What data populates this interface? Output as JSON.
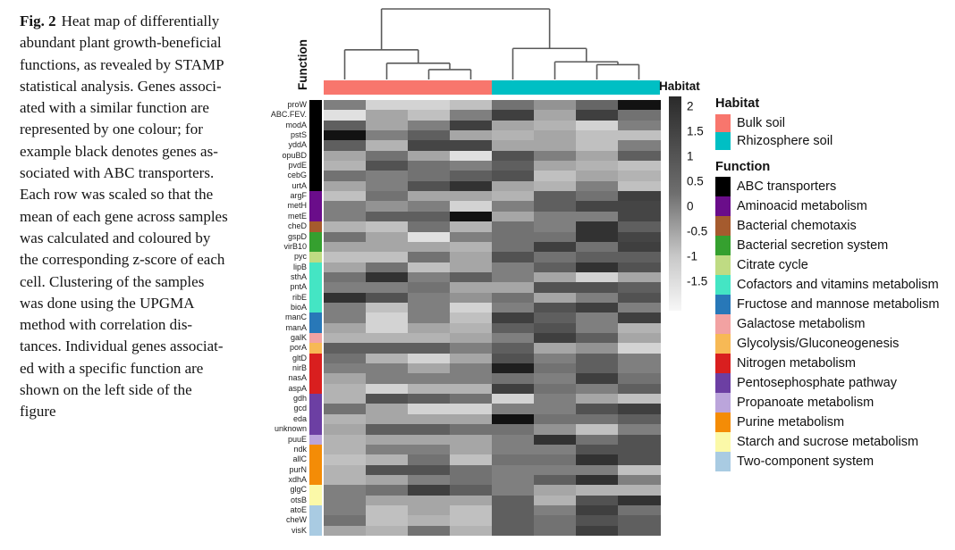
{
  "figure_caption": {
    "label": "Fig. 2",
    "lines": [
      "Heat map of differentially",
      "abundant plant growth-beneficial",
      "functions, as revealed by STAMP",
      "statistical analysis. Genes associ-",
      "ated with a similar function are",
      "represented by one colour; for",
      "example black denotes genes as-",
      "sociated with ABC transporters.",
      "Each row was scaled so that the",
      "mean of each gene across samples",
      "was calculated and coloured by",
      "the corresponding z-score of each",
      "cell. Clustering of the samples",
      "was done using the UPGMA",
      "method with correlation dis-",
      "tances. Individual genes associat-",
      "ed with a specific function are",
      "shown on the left side of the",
      "figure"
    ]
  },
  "chart_data": {
    "type": "heatmap",
    "value_name": "z-score",
    "zlim": [
      -1.5,
      2
    ],
    "axis_labels": {
      "function_axis": "Function",
      "habitat_axis": "Habitat"
    },
    "colorbar_ticks": [
      "2",
      "1.5",
      "1",
      "0.5",
      "0",
      "-0.5",
      "-1",
      "-1.5"
    ],
    "sample_groups": [
      {
        "habitat": "Bulk soil",
        "n_samples": 4
      },
      {
        "habitat": "Rhizosphere soil",
        "n_samples": 4
      }
    ],
    "genes": [
      "proW",
      "ABC.FEV.",
      "modA",
      "pstS",
      "yddA",
      "opuBD",
      "pvdE",
      "cebG",
      "urtA",
      "argF",
      "metH",
      "metE",
      "cheD",
      "gspD",
      "virB10",
      "pyc",
      "lipB",
      "sthA",
      "pntA",
      "ribE",
      "bioA",
      "manC",
      "manA",
      "galK",
      "porA",
      "gltD",
      "nirB",
      "nasA",
      "aspA",
      "gdh",
      "gcd",
      "eda",
      "unknown",
      "puuE",
      "ndk",
      "allC",
      "purN",
      "xdhA",
      "glgC",
      "otsB",
      "atoE",
      "cheW",
      "visK"
    ],
    "gene_function_index": [
      0,
      0,
      0,
      0,
      0,
      0,
      0,
      0,
      0,
      1,
      1,
      1,
      2,
      3,
      3,
      4,
      5,
      5,
      5,
      5,
      5,
      6,
      6,
      7,
      8,
      9,
      9,
      9,
      9,
      10,
      10,
      10,
      10,
      11,
      12,
      12,
      12,
      12,
      13,
      13,
      14,
      14,
      14
    ],
    "z_matrix": [
      [
        0.3,
        -1.0,
        -1.0,
        -0.7,
        0.5,
        0.0,
        0.7,
        2.0
      ],
      [
        -1.2,
        -0.3,
        -0.7,
        0.3,
        1.3,
        -0.3,
        1.3,
        0.5
      ],
      [
        0.8,
        -0.3,
        0.3,
        1.3,
        -0.3,
        -0.5,
        -1.0,
        0.3
      ],
      [
        2.0,
        0.3,
        0.8,
        -0.3,
        -0.5,
        -0.3,
        -0.7,
        -0.7
      ],
      [
        0.8,
        -0.5,
        1.2,
        1.2,
        -0.3,
        -0.3,
        -0.7,
        0.3
      ],
      [
        -0.3,
        0.5,
        -0.3,
        -1.2,
        1.0,
        0.3,
        -0.3,
        0.8
      ],
      [
        -0.5,
        1.0,
        0.5,
        0.3,
        0.8,
        -0.3,
        -0.5,
        -0.7
      ],
      [
        0.5,
        0.3,
        0.5,
        0.8,
        1.0,
        -0.7,
        -0.3,
        -0.5
      ],
      [
        -0.3,
        0.3,
        1.0,
        1.5,
        -0.3,
        -0.5,
        0.3,
        -0.7
      ],
      [
        -0.7,
        0.5,
        -0.3,
        -0.3,
        -0.5,
        0.8,
        0.5,
        1.3
      ],
      [
        0.3,
        0.0,
        0.3,
        -1.0,
        0.3,
        0.8,
        1.2,
        1.2
      ],
      [
        0.3,
        0.8,
        0.8,
        2.0,
        -0.3,
        0.3,
        0.3,
        1.2
      ],
      [
        -0.5,
        -0.7,
        0.5,
        -0.5,
        0.5,
        0.3,
        1.5,
        0.8
      ],
      [
        0.5,
        -0.3,
        -1.2,
        0.3,
        0.5,
        0.5,
        1.5,
        1.2
      ],
      [
        -0.3,
        -0.3,
        -0.3,
        -0.5,
        0.5,
        1.3,
        0.5,
        1.3
      ],
      [
        -0.7,
        -0.7,
        0.5,
        -0.3,
        1.0,
        0.5,
        0.8,
        0.8
      ],
      [
        -0.3,
        0.5,
        -0.7,
        -0.3,
        0.3,
        0.8,
        1.5,
        1.0
      ],
      [
        0.5,
        1.5,
        0.3,
        0.8,
        0.3,
        -0.3,
        -1.0,
        -0.3
      ],
      [
        0.3,
        0.3,
        0.5,
        -0.3,
        -0.3,
        1.0,
        1.0,
        0.8
      ],
      [
        1.5,
        1.0,
        0.3,
        0.0,
        0.5,
        -0.3,
        0.3,
        1.0
      ],
      [
        0.3,
        -0.7,
        0.3,
        -1.0,
        0.3,
        1.0,
        1.3,
        0.3
      ],
      [
        0.3,
        -1.0,
        0.3,
        -0.7,
        1.3,
        0.8,
        0.3,
        1.3
      ],
      [
        -0.3,
        -1.0,
        -0.3,
        -0.5,
        0.8,
        1.0,
        0.3,
        -0.5
      ],
      [
        -0.5,
        -0.5,
        -0.5,
        -0.3,
        0.3,
        1.3,
        0.8,
        -0.3
      ],
      [
        0.8,
        0.8,
        0.8,
        0.3,
        0.8,
        -0.3,
        0.0,
        -1.0
      ],
      [
        0.5,
        -0.5,
        -1.0,
        -0.3,
        1.0,
        0.3,
        0.8,
        0.3
      ],
      [
        0.3,
        0.3,
        -0.3,
        0.3,
        1.8,
        0.5,
        0.8,
        0.3
      ],
      [
        -0.3,
        0.3,
        0.3,
        0.3,
        0.5,
        0.3,
        1.3,
        0.5
      ],
      [
        -0.5,
        -1.0,
        -0.5,
        -0.5,
        1.3,
        0.5,
        0.3,
        0.8
      ],
      [
        -0.5,
        1.0,
        0.8,
        0.5,
        -1.0,
        0.3,
        -0.3,
        -0.7
      ],
      [
        0.5,
        -0.3,
        -1.0,
        -1.0,
        0.3,
        0.3,
        1.0,
        1.3
      ],
      [
        -0.5,
        -0.3,
        -0.3,
        -0.3,
        2.0,
        0.5,
        0.5,
        0.8
      ],
      [
        -0.3,
        0.8,
        0.8,
        0.5,
        0.5,
        0.0,
        -0.7,
        0.3
      ],
      [
        -0.5,
        -0.3,
        -0.3,
        -0.3,
        0.3,
        1.5,
        0.5,
        1.0
      ],
      [
        -0.5,
        0.3,
        0.3,
        -0.3,
        0.3,
        0.3,
        1.0,
        1.0
      ],
      [
        -0.7,
        -0.5,
        0.5,
        -0.7,
        0.5,
        0.5,
        1.5,
        1.0
      ],
      [
        -0.5,
        1.0,
        1.0,
        0.5,
        0.3,
        0.3,
        0.3,
        -0.7
      ],
      [
        -0.5,
        -0.3,
        0.3,
        0.5,
        0.3,
        0.8,
        1.5,
        0.3
      ],
      [
        0.3,
        0.5,
        1.3,
        0.8,
        0.3,
        -0.3,
        -0.5,
        -0.5
      ],
      [
        0.3,
        -0.3,
        -0.3,
        -0.3,
        0.8,
        -0.5,
        1.0,
        1.5
      ],
      [
        0.3,
        -0.7,
        -0.3,
        -0.7,
        0.8,
        0.3,
        1.3,
        0.5
      ],
      [
        0.5,
        -0.7,
        -0.5,
        -0.7,
        0.8,
        0.5,
        1.0,
        0.8
      ],
      [
        -0.3,
        -0.5,
        0.5,
        -0.5,
        0.8,
        0.5,
        1.3,
        0.8
      ]
    ],
    "column_dendrogram": {
      "clustering_method": "UPGMA",
      "tree": {
        "h": 1.0,
        "c": [
          {
            "h": 0.42,
            "c": [
              {
                "leaf": 0
              },
              {
                "h": 0.23,
                "c": [
                  {
                    "leaf": 1
                  },
                  {
                    "h": 0.14,
                    "c": [
                      {
                        "leaf": 2
                      },
                      {
                        "leaf": 3
                      }
                    ]
                  }
                ]
              }
            ]
          },
          {
            "h": 0.44,
            "c": [
              {
                "leaf": 4
              },
              {
                "h": 0.25,
                "c": [
                  {
                    "leaf": 5
                  },
                  {
                    "h": 0.21,
                    "c": [
                      {
                        "leaf": 6
                      },
                      {
                        "leaf": 7
                      }
                    ]
                  }
                ]
              }
            ]
          }
        ]
      }
    }
  },
  "legend": {
    "habitat": {
      "title": "Habitat",
      "items": [
        {
          "label": "Bulk soil",
          "color": "#f8766d"
        },
        {
          "label": "Rhizosphere soil",
          "color": "#00bfc4"
        }
      ]
    },
    "function": {
      "title": "Function",
      "items": [
        {
          "label": "ABC transporters",
          "color": "#000000"
        },
        {
          "label": "Aminoacid metabolism",
          "color": "#6a0d8a"
        },
        {
          "label": "Bacterial chemotaxis",
          "color": "#a55b2e"
        },
        {
          "label": "Bacterial secretion system",
          "color": "#35a02f"
        },
        {
          "label": "Citrate cycle",
          "color": "#bfdb83"
        },
        {
          "label": "Cofactors and vitamins metabolism",
          "color": "#44e5c4"
        },
        {
          "label": "Fructose and mannose metabolism",
          "color": "#2878b8"
        },
        {
          "label": "Galactose metabolism",
          "color": "#f2a2a2"
        },
        {
          "label": "Glycolysis/Gluconeogenesis",
          "color": "#f7b955"
        },
        {
          "label": "Nitrogen metabolism",
          "color": "#d91f1f"
        },
        {
          "label": "Pentosephosphate pathway",
          "color": "#6c3fa3"
        },
        {
          "label": "Propanoate metabolism",
          "color": "#bba5db"
        },
        {
          "label": "Purine metabolism",
          "color": "#f48c06"
        },
        {
          "label": "Starch and sucrose metabolism",
          "color": "#fbf9a8"
        },
        {
          "label": "Two-component system",
          "color": "#a9cbe2"
        }
      ]
    }
  }
}
